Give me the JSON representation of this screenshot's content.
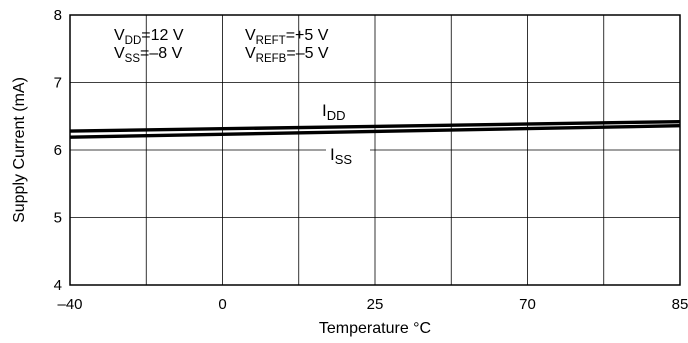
{
  "chart_data": {
    "type": "line",
    "xlabel": "Temperature °C",
    "ylabel": "Supply Current (mA)",
    "x": [
      -40,
      85
    ],
    "xticks": [
      "–40",
      "0",
      "25",
      "70",
      "85"
    ],
    "yticks": [
      4,
      5,
      6,
      7,
      8
    ],
    "ylim": [
      4,
      8
    ],
    "grid": true,
    "conditions": [
      {
        "main": "V",
        "sub": "DD",
        "rest": "=12 V"
      },
      {
        "main": "V",
        "sub": "SS",
        "rest": "=–8 V"
      },
      {
        "main": "V",
        "sub": "REFT",
        "rest": "=+5 V"
      },
      {
        "main": "V",
        "sub": "REFB",
        "rest": "=–5 V"
      }
    ],
    "series": [
      {
        "name": "IDD",
        "label_main": "I",
        "label_sub": "DD",
        "values": [
          6.28,
          6.42
        ]
      },
      {
        "name": "ISS",
        "label_main": "I",
        "label_sub": "SS",
        "values": [
          6.19,
          6.36
        ]
      }
    ],
    "line_color": "#000000"
  }
}
